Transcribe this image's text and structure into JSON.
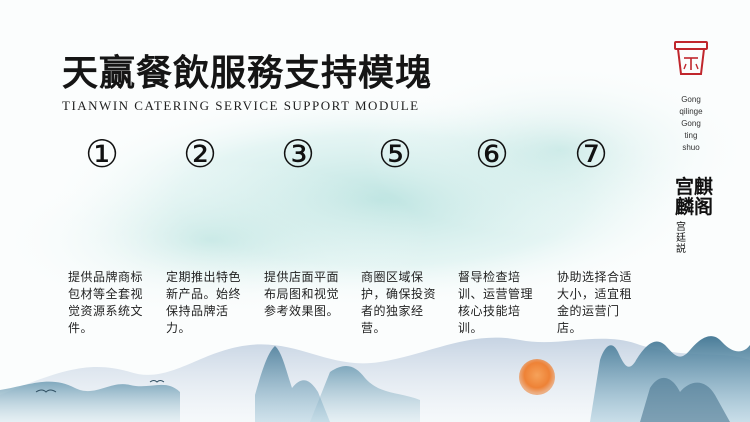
{
  "title": {
    "cn": "天赢餐飲服務支持模塊",
    "en": "TIANWIN CATERING SERVICE SUPPORT MODULE"
  },
  "brand": {
    "logo": "tea-cup-icon",
    "en_lines": [
      "Gong",
      "qilinge",
      "Gong",
      "ting",
      "shuo"
    ],
    "cn_main": "宫麒麟阁",
    "cn_sub": "宫廷説"
  },
  "modules": [
    {
      "number": "①",
      "text": "提供品牌商标包材等全套视觉资源系统文件。"
    },
    {
      "number": "②",
      "text": "定期推出特色新产品。始终保持品牌活力。"
    },
    {
      "number": "③",
      "text": "提供店面平面布局图和视觉参考效果图。"
    },
    {
      "number": "⑤",
      "text": "商圈区域保护，确保投资者的独家经营。"
    },
    {
      "number": "⑥",
      "text": "督导检查培训、运营管理核心技能培训。"
    },
    {
      "number": "⑦",
      "text": "协助选择合适大小，适宜租金的运营门店。"
    }
  ],
  "colors": {
    "accent_red": "#c0262c",
    "mountain_blue": "#4d7f9a",
    "sun_orange": "#f08a3e",
    "wash_teal": "#bfe3e0"
  }
}
